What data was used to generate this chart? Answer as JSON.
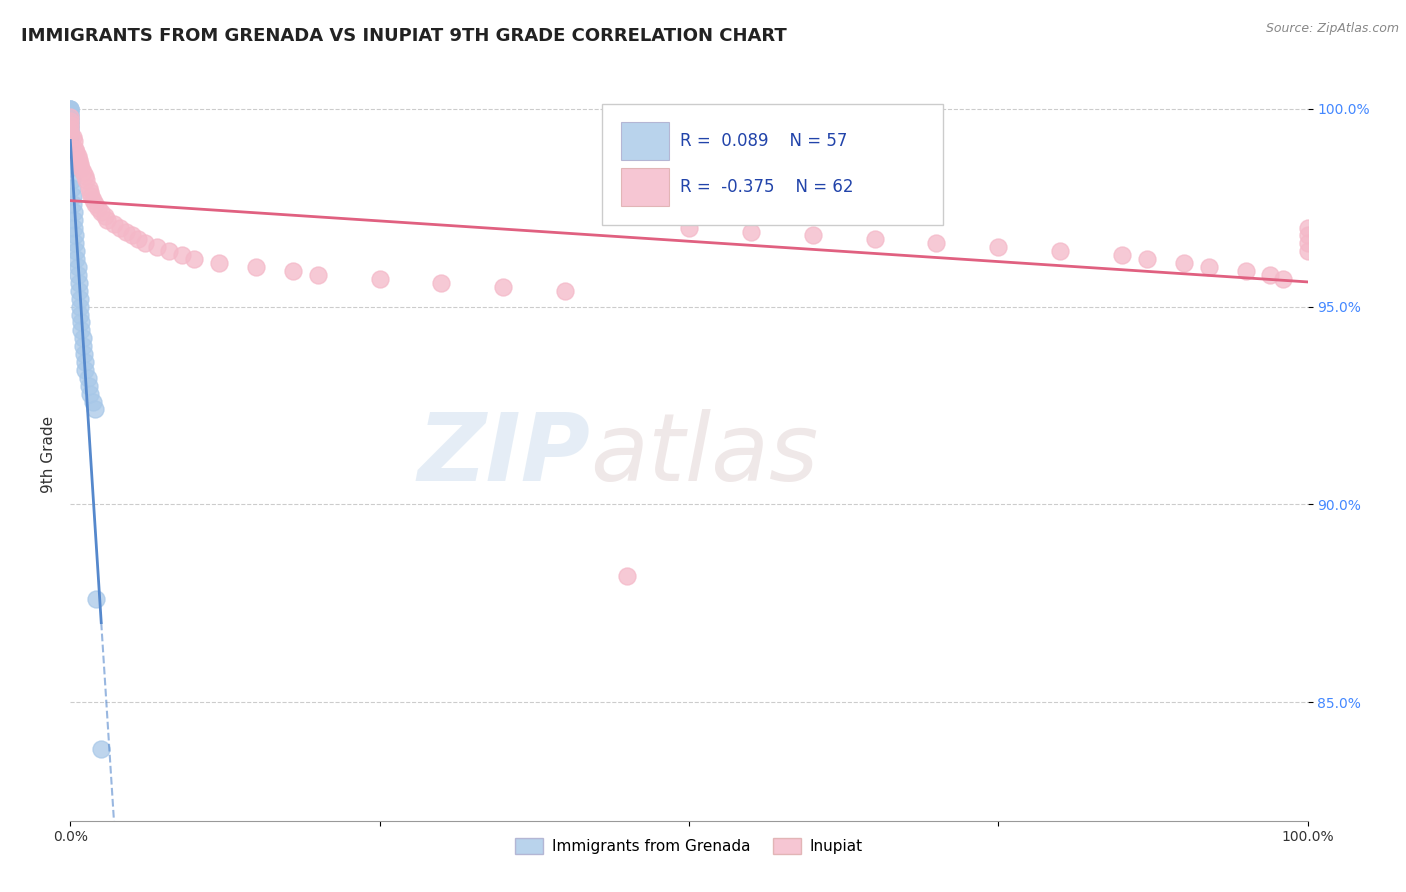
{
  "title": "IMMIGRANTS FROM GRENADA VS INUPIAT 9TH GRADE CORRELATION CHART",
  "source_text": "Source: ZipAtlas.com",
  "ylabel": "9th Grade",
  "watermark_zip": "ZIP",
  "watermark_atlas": "atlas",
  "legend_r_blue": "0.089",
  "legend_n_blue": "57",
  "legend_r_pink": "-0.375",
  "legend_n_pink": "62",
  "blue_scatter_color": "#a8c8e8",
  "pink_scatter_color": "#f4b8c8",
  "blue_line_color": "#5588cc",
  "pink_line_color": "#e06080",
  "blue_legend_box": "#a8c8e8",
  "pink_legend_box": "#f4b8c8",
  "legend_text_color_r": "#2244aa",
  "legend_text_color_n": "#2244aa",
  "y_tick_color": "#4488ff",
  "x_tick_color": "#333333",
  "grid_color": "#cccccc",
  "background_color": "#ffffff",
  "title_fontsize": 13,
  "tick_fontsize": 10,
  "ylabel_fontsize": 11,
  "source_fontsize": 9,
  "legend_fontsize": 12,
  "watermark_fontsize_zip": 68,
  "watermark_fontsize_atlas": 68,
  "blue_x": [
    0.0,
    0.0,
    0.0,
    0.0,
    0.0,
    0.0,
    0.0,
    0.0,
    0.0,
    0.0,
    0.0,
    0.0,
    0.0,
    0.0,
    0.0,
    0.0,
    0.0,
    0.0,
    0.0,
    0.0,
    0.0,
    0.0,
    0.0,
    0.0,
    0.0,
    0.001,
    0.001,
    0.002,
    0.002,
    0.003,
    0.003,
    0.003,
    0.004,
    0.004,
    0.005,
    0.005,
    0.006,
    0.006,
    0.007,
    0.007,
    0.008,
    0.008,
    0.008,
    0.009,
    0.009,
    0.01,
    0.01,
    0.011,
    0.012,
    0.012,
    0.014,
    0.015,
    0.016,
    0.018,
    0.02,
    0.021,
    0.025
  ],
  "blue_y": [
    1.0,
    1.0,
    1.0,
    0.999,
    0.999,
    0.998,
    0.998,
    0.997,
    0.997,
    0.996,
    0.996,
    0.995,
    0.995,
    0.994,
    0.994,
    0.993,
    0.993,
    0.992,
    0.991,
    0.99,
    0.989,
    0.988,
    0.987,
    0.986,
    0.985,
    0.982,
    0.98,
    0.978,
    0.976,
    0.974,
    0.972,
    0.97,
    0.968,
    0.966,
    0.964,
    0.962,
    0.96,
    0.958,
    0.956,
    0.954,
    0.952,
    0.95,
    0.948,
    0.946,
    0.944,
    0.942,
    0.94,
    0.938,
    0.936,
    0.934,
    0.932,
    0.93,
    0.928,
    0.926,
    0.924,
    0.876,
    0.838
  ],
  "pink_x": [
    0.0,
    0.0,
    0.0,
    0.0,
    0.0,
    0.002,
    0.003,
    0.004,
    0.005,
    0.006,
    0.007,
    0.008,
    0.009,
    0.01,
    0.012,
    0.013,
    0.015,
    0.016,
    0.017,
    0.018,
    0.02,
    0.022,
    0.025,
    0.028,
    0.03,
    0.035,
    0.04,
    0.045,
    0.05,
    0.055,
    0.06,
    0.07,
    0.08,
    0.09,
    0.1,
    0.12,
    0.15,
    0.18,
    0.2,
    0.25,
    0.3,
    0.35,
    0.4,
    0.45,
    0.5,
    0.55,
    0.6,
    0.65,
    0.7,
    0.75,
    0.8,
    0.85,
    0.87,
    0.9,
    0.92,
    0.95,
    0.97,
    0.98,
    1.0,
    1.0,
    1.0,
    1.0
  ],
  "pink_y": [
    0.998,
    0.997,
    0.996,
    0.995,
    0.994,
    0.993,
    0.992,
    0.99,
    0.989,
    0.988,
    0.987,
    0.986,
    0.985,
    0.984,
    0.983,
    0.982,
    0.98,
    0.979,
    0.978,
    0.977,
    0.976,
    0.975,
    0.974,
    0.973,
    0.972,
    0.971,
    0.97,
    0.969,
    0.968,
    0.967,
    0.966,
    0.965,
    0.964,
    0.963,
    0.962,
    0.961,
    0.96,
    0.959,
    0.958,
    0.957,
    0.956,
    0.955,
    0.954,
    0.882,
    0.97,
    0.969,
    0.968,
    0.967,
    0.966,
    0.965,
    0.964,
    0.963,
    0.962,
    0.961,
    0.96,
    0.959,
    0.958,
    0.957,
    0.97,
    0.968,
    0.966,
    0.964
  ],
  "xlim": [
    0.0,
    1.0
  ],
  "ylim": [
    0.82,
    1.005
  ],
  "yticks": [
    0.85,
    0.9,
    0.95,
    1.0
  ],
  "ytick_labels": [
    "85.0%",
    "90.0%",
    "95.0%",
    "100.0%"
  ],
  "xticks": [
    0.0,
    0.25,
    0.5,
    0.75,
    1.0
  ],
  "xtick_labels": [
    "0.0%",
    "",
    "",
    "",
    "100.0%"
  ]
}
